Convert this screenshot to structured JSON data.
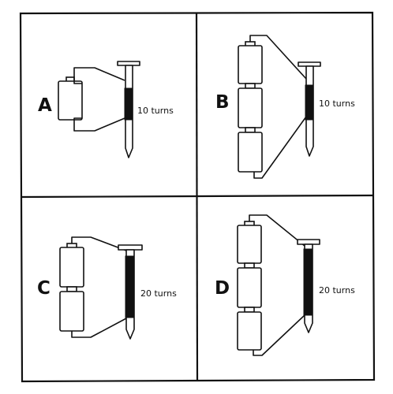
{
  "panels": [
    {
      "id": "A",
      "letter": "A",
      "cells": 1,
      "turns": 10,
      "turns_label": "10 turns"
    },
    {
      "id": "B",
      "letter": "B",
      "cells": 3,
      "turns": 10,
      "turns_label": "10 turns"
    },
    {
      "id": "C",
      "letter": "C",
      "cells": 2,
      "turns": 20,
      "turns_label": "20 turns"
    },
    {
      "id": "D",
      "letter": "D",
      "cells": 3,
      "turns": 20,
      "turns_label": "20 turns"
    }
  ]
}
